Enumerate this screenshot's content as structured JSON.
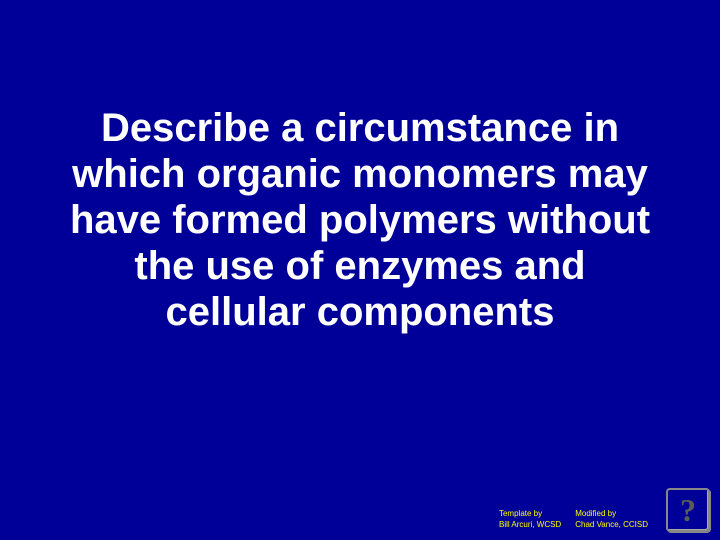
{
  "main": {
    "question": "Describe a circumstance in which organic monomers may have formed polymers without the use of enzymes and cellular components"
  },
  "credits": {
    "left": {
      "line1": "Template by",
      "line2": "Bill Arcuri, WCSD"
    },
    "right": {
      "line1": "Modified by",
      "line2": "Chad Vance, CCISD"
    }
  },
  "help": {
    "symbol": "?"
  },
  "colors": {
    "background": "#000099",
    "text": "#ffffff",
    "credit": "#ffff00",
    "icon_border": "#888"
  }
}
